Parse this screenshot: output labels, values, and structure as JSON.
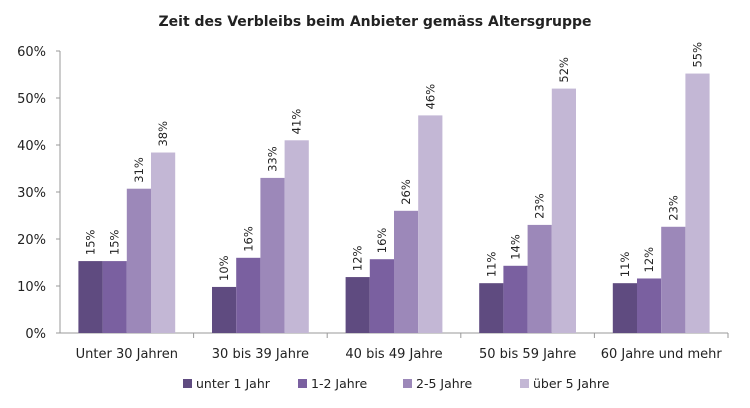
{
  "chart_data": {
    "type": "bar",
    "title": "Zeit des Verbleibs beim Anbieter gemäss Altersgruppe",
    "xlabel": "",
    "ylabel": "",
    "ylim": [
      0,
      60
    ],
    "yticks": [
      "0%",
      "10%",
      "20%",
      "30%",
      "40%",
      "50%",
      "60%"
    ],
    "grid": false,
    "legend": "bottom",
    "categories": [
      "Unter 30 Jahren",
      "30 bis 39 Jahre",
      "40 bis 49 Jahre",
      "50 bis 59 Jahre",
      "60 Jahre und mehr"
    ],
    "series": [
      {
        "name": "unter 1 Jahr",
        "color": "#5f4b80",
        "values": [
          15.3,
          9.8,
          11.9,
          10.6,
          10.6
        ],
        "labels": [
          "15%",
          "10%",
          "12%",
          "11%",
          "11%"
        ]
      },
      {
        "name": "1-2 Jahre",
        "color": "#7a60a0",
        "values": [
          15.3,
          16.0,
          15.7,
          14.3,
          11.6
        ],
        "labels": [
          "15%",
          "16%",
          "16%",
          "14%",
          "12%"
        ]
      },
      {
        "name": "2-5 Jahre",
        "color": "#9c88b9",
        "values": [
          30.7,
          33.0,
          26.0,
          23.0,
          22.6
        ],
        "labels": [
          "31%",
          "33%",
          "26%",
          "23%",
          "23%"
        ]
      },
      {
        "name": "über 5 Jahre",
        "color": "#c3b7d5",
        "values": [
          38.4,
          41.0,
          46.3,
          52.0,
          55.2
        ],
        "labels": [
          "38%",
          "41%",
          "46%",
          "52%",
          "55%"
        ]
      }
    ]
  }
}
